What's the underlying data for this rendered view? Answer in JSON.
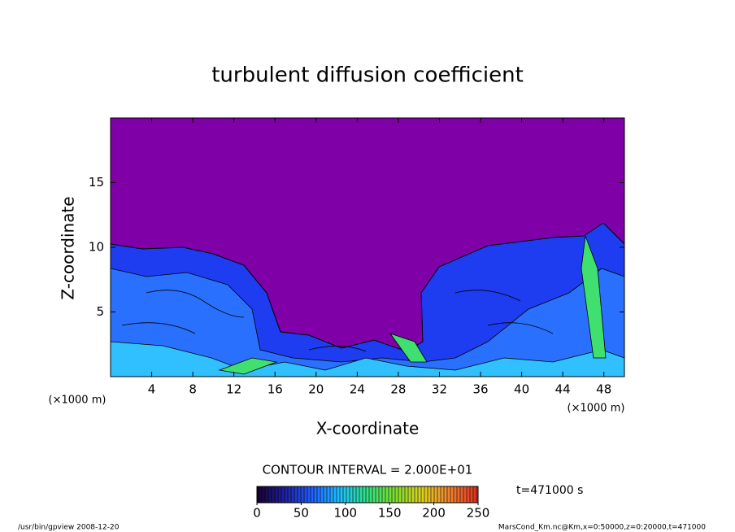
{
  "chart_data": {
    "type": "heatmap",
    "title": "turbulent diffusion coefficient",
    "xlabel": "X-coordinate",
    "ylabel": "Z-coordinate",
    "x_unit": "(×1000 m)",
    "y_unit": "(×1000 m)",
    "xlim": [
      0,
      50
    ],
    "ylim": [
      0,
      20
    ],
    "xticks": [
      4,
      8,
      12,
      16,
      20,
      24,
      28,
      32,
      36,
      40,
      44,
      48
    ],
    "yticks": [
      5,
      10,
      15
    ],
    "colorbar": {
      "lim": [
        0,
        250
      ],
      "ticks": [
        0,
        50,
        100,
        150,
        200,
        250
      ],
      "colors": [
        "#1a0030",
        "#2020a0",
        "#2060ff",
        "#20c0ff",
        "#30e080",
        "#80e030",
        "#e0d020",
        "#f08030",
        "#e03020"
      ]
    },
    "contour_note": "CONTOUR INTERVAL = 2.000E+01",
    "time_note": "t=471000 s",
    "footer_left": "/usr/bin/gpview   2008-12-20",
    "footer_right": "MarsCond_Km.nc@Km,x=0:50000,z=0:20000,t=471000"
  }
}
